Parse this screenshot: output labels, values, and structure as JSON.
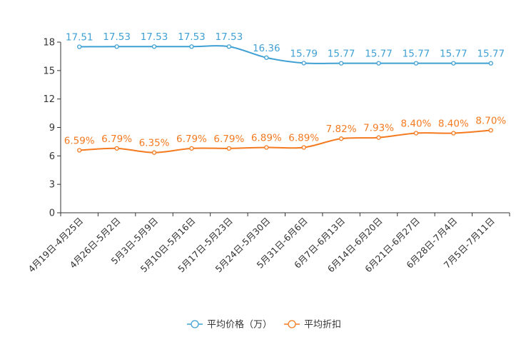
{
  "chart_data": {
    "type": "line",
    "categories": [
      "4月19日-4月25日",
      "4月26日-5月2日",
      "5月3日-5月9日",
      "5月10日-5月16日",
      "5月17日-5月23日",
      "5月24日-5月30日",
      "5月31日-6月6日",
      "6月7日-6月13日",
      "6月14日-6月20日",
      "6月21日-6月27日",
      "6月28日-7月4日",
      "7月5日-7月11日"
    ],
    "ylim": [
      0,
      18
    ],
    "yticks": [
      0,
      3,
      6,
      9,
      12,
      15,
      18
    ],
    "series": [
      {
        "name": "平均价格（万）",
        "color": "#3fa0d4",
        "values": [
          17.51,
          17.53,
          17.53,
          17.53,
          17.53,
          16.36,
          15.79,
          15.77,
          15.77,
          15.77,
          15.77,
          15.77
        ],
        "labels": [
          "17.51",
          "17.53",
          "17.53",
          "17.53",
          "17.53",
          "16.36",
          "15.79",
          "15.77",
          "15.77",
          "15.77",
          "15.77",
          "15.77"
        ]
      },
      {
        "name": "平均折扣",
        "color": "#f47a20",
        "values": [
          6.59,
          6.79,
          6.35,
          6.79,
          6.79,
          6.89,
          6.89,
          7.82,
          7.93,
          8.4,
          8.4,
          8.7
        ],
        "labels": [
          "6.59%",
          "6.79%",
          "6.35%",
          "6.79%",
          "6.79%",
          "6.89%",
          "6.89%",
          "7.82%",
          "7.93%",
          "8.40%",
          "8.40%",
          "8.70%"
        ]
      }
    ],
    "legend": {
      "position": "bottom-center"
    }
  }
}
